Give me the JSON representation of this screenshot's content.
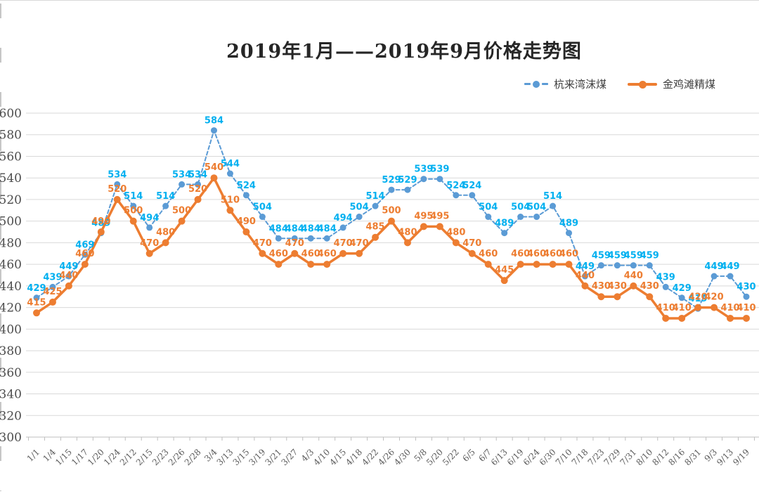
{
  "title": "2019年1月——2019年9月价格走势图",
  "legend": {
    "items": [
      {
        "label": "杭来湾沫煤"
      },
      {
        "label": "金鸡滩精煤"
      }
    ]
  },
  "chart_data": {
    "type": "line",
    "title": "2019年1月——2019年9月价格走势图",
    "xlabel": "",
    "ylabel": "",
    "ylim": [
      300,
      600
    ],
    "ytick_step": 20,
    "y_ticks": [
      300,
      320,
      340,
      360,
      380,
      400,
      420,
      440,
      460,
      480,
      500,
      520,
      540,
      560,
      580,
      600
    ],
    "grid": true,
    "legend_position": "top-right",
    "categories": [
      "1/1",
      "1/4",
      "1/15",
      "1/17",
      "1/20",
      "1/24",
      "2/12",
      "2/15",
      "2/23",
      "2/26",
      "2/28",
      "3/4",
      "3/13",
      "3/15",
      "3/19",
      "3/21",
      "3/27",
      "4/3",
      "4/10",
      "4/15",
      "4/18",
      "4/22",
      "4/26",
      "4/30",
      "5/8",
      "5/20",
      "5/22",
      "6/5",
      "6/7",
      "6/13",
      "6/19",
      "6/24",
      "6/30",
      "7/10",
      "7/18",
      "7/23",
      "7/29",
      "7/31",
      "8/10",
      "8/12",
      "8/16",
      "8/31",
      "9/3",
      "9/13",
      "9/19"
    ],
    "series": [
      {
        "name": "杭来湾沫煤",
        "style": "dashed",
        "line_color": "#5B9BD5",
        "label_color": "#00B0F0",
        "values": [
          429,
          439,
          449,
          469,
          489,
          534,
          514,
          494,
          514,
          534,
          534,
          584,
          544,
          524,
          504,
          484,
          484,
          484,
          484,
          494,
          504,
          514,
          529,
          529,
          539,
          539,
          524,
          524,
          504,
          489,
          504,
          504,
          514,
          489,
          449,
          459,
          459,
          459,
          459,
          439,
          429,
          419,
          449,
          449,
          430
        ]
      },
      {
        "name": "金鸡滩精煤",
        "style": "solid",
        "line_color": "#ED7D31",
        "label_color": "#ED7D31",
        "values": [
          415,
          425,
          440,
          460,
          490,
          520,
          500,
          470,
          480,
          500,
          520,
          540,
          510,
          490,
          470,
          460,
          470,
          460,
          460,
          470,
          470,
          485,
          500,
          480,
          495,
          495,
          480,
          470,
          460,
          445,
          460,
          460,
          460,
          460,
          440,
          430,
          430,
          440,
          430,
          410,
          410,
          420,
          420,
          410,
          410
        ]
      }
    ],
    "colors": {
      "grid": "#D9D9D9",
      "axis": "#BFBFBF",
      "axis_text": "#595959"
    }
  }
}
